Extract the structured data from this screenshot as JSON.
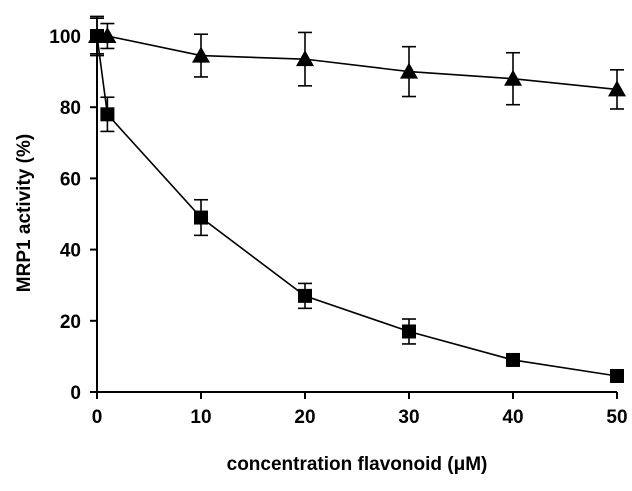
{
  "chart_data": {
    "type": "line",
    "xlabel": "concentration flavonoid (μM)",
    "ylabel": "MRP1 activity (%)",
    "xlim": [
      0,
      50
    ],
    "ylim": [
      0,
      100
    ],
    "xticks": [
      0,
      10,
      20,
      30,
      40,
      50
    ],
    "yticks": [
      0,
      20,
      40,
      60,
      80,
      100
    ],
    "grid": false,
    "legend": "none",
    "series": [
      {
        "marker": "triangle",
        "color": "#000000",
        "points": [
          {
            "x": 0,
            "y": 100,
            "err": 5
          },
          {
            "x": 1,
            "y": 100,
            "err": 3.5
          },
          {
            "x": 10,
            "y": 94.5,
            "err": 6
          },
          {
            "x": 20,
            "y": 93.5,
            "err": 7.5
          },
          {
            "x": 30,
            "y": 90,
            "err": 7
          },
          {
            "x": 40,
            "y": 88,
            "err": 7.3
          },
          {
            "x": 50,
            "y": 85,
            "err": 5.5
          }
        ]
      },
      {
        "marker": "square",
        "color": "#000000",
        "points": [
          {
            "x": 0,
            "y": 100,
            "err": 5.5
          },
          {
            "x": 1,
            "y": 78,
            "err": 4.8
          },
          {
            "x": 10,
            "y": 49,
            "err": 5
          },
          {
            "x": 20,
            "y": 27,
            "err": 3.5
          },
          {
            "x": 30,
            "y": 17,
            "err": 3.5
          },
          {
            "x": 40,
            "y": 9,
            "err": 1.5
          },
          {
            "x": 50,
            "y": 4.5,
            "err": 1.5
          }
        ]
      }
    ]
  }
}
